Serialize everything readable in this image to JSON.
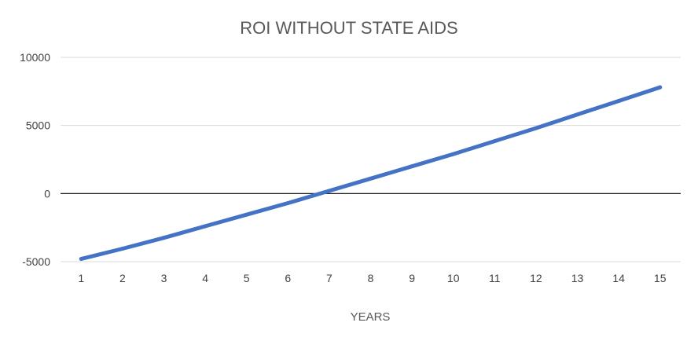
{
  "chart_data": {
    "type": "line",
    "title": "ROI WITHOUT STATE AIDS",
    "xlabel": "YEARS",
    "ylabel": "",
    "categories": [
      "1",
      "2",
      "3",
      "4",
      "5",
      "6",
      "7",
      "8",
      "9",
      "10",
      "11",
      "12",
      "13",
      "14",
      "15"
    ],
    "series": [
      {
        "values": [
          -4800,
          -4050,
          -3250,
          -2400,
          -1550,
          -700,
          200,
          1100,
          2000,
          2900,
          3850,
          4800,
          5800,
          6800,
          7800
        ]
      }
    ],
    "ylim": [
      -5000,
      10000
    ],
    "yticks": [
      "10000",
      "5000",
      "0",
      "-5000"
    ],
    "grid": true,
    "legend": "none",
    "colors": {
      "line": "#4472c4",
      "grid": "#d9d9d9",
      "zero_line": "#000000"
    }
  }
}
